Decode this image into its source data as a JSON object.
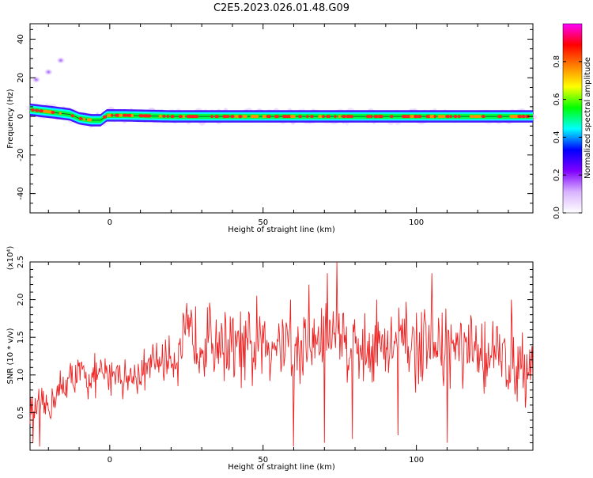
{
  "title": "C2E5.2023.026.01.48.G09",
  "chart_data": [
    {
      "type": "heatmap",
      "xlabel": "Height of straight line (km)",
      "ylabel": "Frequency (Hz)",
      "xlim": [
        -26,
        138
      ],
      "ylim": [
        -50,
        48
      ],
      "xticks": [
        0,
        50,
        100
      ],
      "yticks": [
        -40,
        -20,
        0,
        20,
        40
      ],
      "colorbar": {
        "label": "Normalized spectral amplitude",
        "range": [
          0,
          1
        ],
        "ticks": [
          "0.0",
          "0.2",
          "0.4",
          "0.6",
          "0.8"
        ],
        "colors": [
          "#ffffff",
          "#d9b3ff",
          "#8000ff",
          "#0000ff",
          "#00ffff",
          "#00ff00",
          "#ffff00",
          "#ff8000",
          "#ff0000",
          "#ff00ff"
        ]
      },
      "ridge": [
        [
          -26,
          3.5
        ],
        [
          -18,
          2
        ],
        [
          -13,
          1
        ],
        [
          -10,
          -1
        ],
        [
          -6,
          -2
        ],
        [
          -3,
          -2
        ],
        [
          -1,
          0.5
        ],
        [
          5,
          0.5
        ],
        [
          20,
          0
        ],
        [
          40,
          0
        ],
        [
          60,
          0
        ],
        [
          80,
          0
        ],
        [
          100,
          0
        ],
        [
          120,
          0
        ],
        [
          138,
          0
        ]
      ],
      "blobs": [
        [
          -16,
          29
        ],
        [
          -20,
          23
        ],
        [
          -24,
          19
        ]
      ]
    },
    {
      "type": "line",
      "xlabel": "Height of straight line (km)",
      "ylabel": "SNR (10 * v/v)",
      "y_multiplier": "(x10⁴)",
      "xlim": [
        -26,
        138
      ],
      "ylim": [
        0,
        2.5
      ],
      "xticks": [
        0,
        50,
        100
      ],
      "yticks": [
        "0.5",
        "1.0",
        "1.5",
        "2.0",
        "2.5"
      ],
      "series": [
        {
          "color": "#ee2222",
          "x": [
            -26,
            -22,
            -18,
            -14,
            -10,
            -6,
            -2,
            2,
            6,
            10,
            14,
            18,
            22,
            24,
            26,
            30,
            34,
            38,
            42,
            46,
            50,
            54,
            58,
            60,
            62,
            66,
            70,
            74,
            78,
            82,
            86,
            90,
            94,
            98,
            102,
            106,
            110,
            114,
            118,
            122,
            126,
            130,
            134,
            138
          ],
          "y": [
            0.6,
            0.5,
            0.7,
            0.9,
            1.0,
            0.95,
            1.0,
            1.05,
            0.95,
            1.0,
            1.15,
            1.2,
            1.25,
            1.4,
            1.5,
            1.45,
            1.5,
            1.4,
            1.35,
            1.3,
            1.4,
            1.45,
            1.5,
            1.2,
            1.35,
            1.4,
            1.5,
            1.6,
            1.4,
            1.35,
            1.4,
            1.3,
            1.45,
            1.4,
            1.3,
            1.35,
            1.4,
            1.3,
            1.25,
            1.3,
            1.25,
            1.2,
            1.15,
            1.1
          ],
          "min_points": [
            [
              -25,
              0.1
            ],
            [
              -23,
              0.05
            ],
            [
              60,
              0.05
            ],
            [
              70,
              0.1
            ],
            [
              79,
              0.15
            ],
            [
              94,
              0.2
            ],
            [
              110,
              0.1
            ]
          ],
          "max_points": [
            [
              74,
              2.5
            ],
            [
              71,
              2.35
            ],
            [
              105,
              2.35
            ],
            [
              65,
              2.2
            ],
            [
              48,
              2.05
            ],
            [
              59,
              2.0
            ],
            [
              87,
              2.0
            ],
            [
              131,
              2.0
            ]
          ]
        }
      ]
    }
  ]
}
